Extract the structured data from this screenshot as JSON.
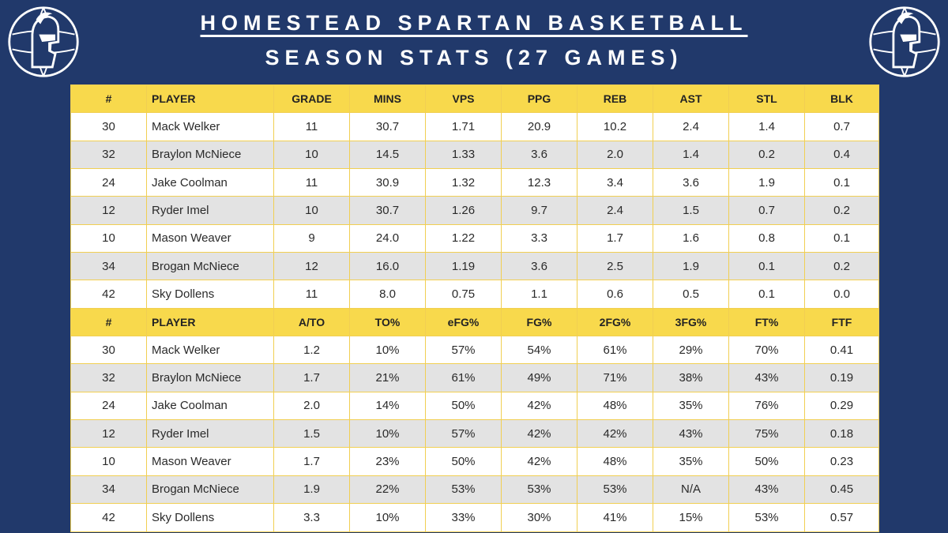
{
  "header": {
    "title": "HOMESTEAD SPARTAN BASKETBALL",
    "subtitle": "SEASON STATS (27 GAMES)"
  },
  "colors": {
    "background": "#21396b",
    "header_row": "#f8d94c",
    "alt_row": "#e3e3e3"
  },
  "logo_icon": "spartan-helmet-basketball-logo",
  "table1": {
    "headers": [
      "#",
      "PLAYER",
      "GRADE",
      "MINS",
      "VPS",
      "PPG",
      "REB",
      "AST",
      "STL",
      "BLK"
    ],
    "rows": [
      [
        "30",
        "Mack Welker",
        "11",
        "30.7",
        "1.71",
        "20.9",
        "10.2",
        "2.4",
        "1.4",
        "0.7"
      ],
      [
        "32",
        "Braylon McNiece",
        "10",
        "14.5",
        "1.33",
        "3.6",
        "2.0",
        "1.4",
        "0.2",
        "0.4"
      ],
      [
        "24",
        "Jake Coolman",
        "11",
        "30.9",
        "1.32",
        "12.3",
        "3.4",
        "3.6",
        "1.9",
        "0.1"
      ],
      [
        "12",
        "Ryder Imel",
        "10",
        "30.7",
        "1.26",
        "9.7",
        "2.4",
        "1.5",
        "0.7",
        "0.2"
      ],
      [
        "10",
        "Mason Weaver",
        "9",
        "24.0",
        "1.22",
        "3.3",
        "1.7",
        "1.6",
        "0.8",
        "0.1"
      ],
      [
        "34",
        "Brogan McNiece",
        "12",
        "16.0",
        "1.19",
        "3.6",
        "2.5",
        "1.9",
        "0.1",
        "0.2"
      ],
      [
        "42",
        "Sky Dollens",
        "11",
        "8.0",
        "0.75",
        "1.1",
        "0.6",
        "0.5",
        "0.1",
        "0.0"
      ]
    ]
  },
  "table2": {
    "headers": [
      "#",
      "PLAYER",
      "A/TO",
      "TO%",
      "eFG%",
      "FG%",
      "2FG%",
      "3FG%",
      "FT%",
      "FTF"
    ],
    "rows": [
      [
        "30",
        "Mack Welker",
        "1.2",
        "10%",
        "57%",
        "54%",
        "61%",
        "29%",
        "70%",
        "0.41"
      ],
      [
        "32",
        "Braylon McNiece",
        "1.7",
        "21%",
        "61%",
        "49%",
        "71%",
        "38%",
        "43%",
        "0.19"
      ],
      [
        "24",
        "Jake Coolman",
        "2.0",
        "14%",
        "50%",
        "42%",
        "48%",
        "35%",
        "76%",
        "0.29"
      ],
      [
        "12",
        "Ryder Imel",
        "1.5",
        "10%",
        "57%",
        "42%",
        "42%",
        "43%",
        "75%",
        "0.18"
      ],
      [
        "10",
        "Mason Weaver",
        "1.7",
        "23%",
        "50%",
        "42%",
        "48%",
        "35%",
        "50%",
        "0.23"
      ],
      [
        "34",
        "Brogan McNiece",
        "1.9",
        "22%",
        "53%",
        "53%",
        "53%",
        "N/A",
        "43%",
        "0.45"
      ],
      [
        "42",
        "Sky Dollens",
        "3.3",
        "10%",
        "33%",
        "30%",
        "41%",
        "15%",
        "53%",
        "0.57"
      ]
    ]
  }
}
